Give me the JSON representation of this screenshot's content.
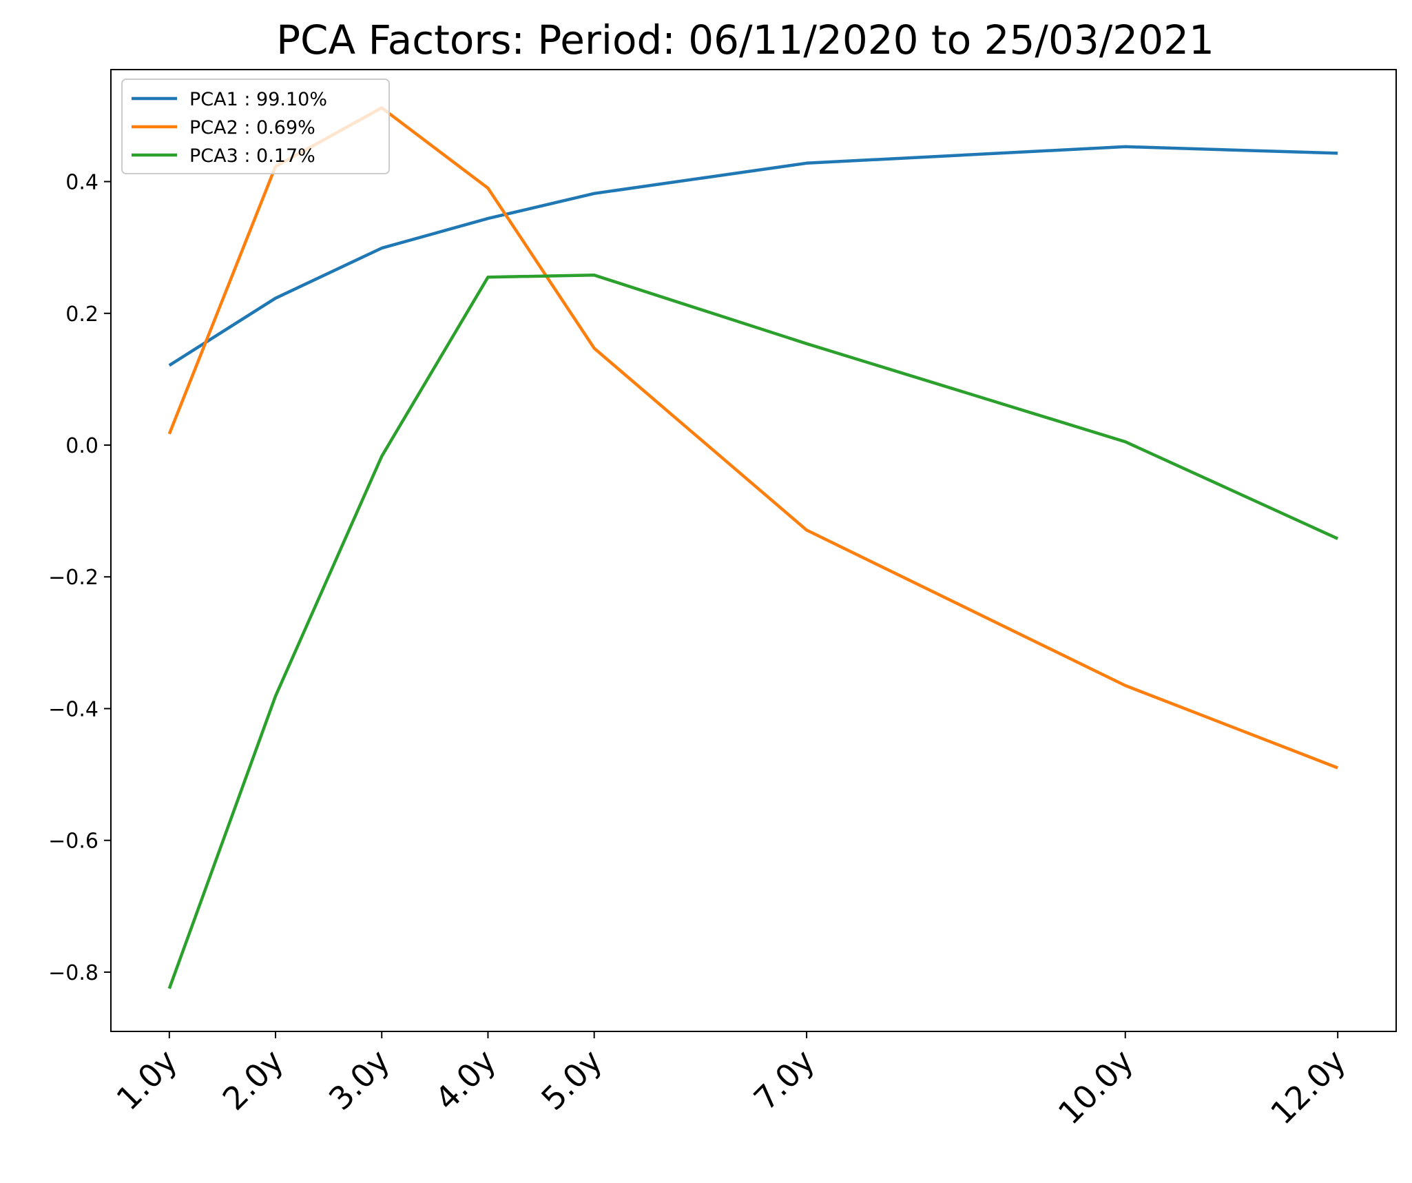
{
  "chart_data": {
    "type": "line",
    "title": "PCA Factors: Period: 06/11/2020 to 25/03/2021",
    "xlabel": "",
    "ylabel": "",
    "x": [
      1,
      2,
      3,
      4,
      5,
      7,
      10,
      12
    ],
    "x_tick_labels": [
      "1.0y",
      "2.0y",
      "3.0y",
      "4.0y",
      "5.0y",
      "7.0y",
      "10.0y",
      "12.0y"
    ],
    "xlim": [
      0.45,
      12.55
    ],
    "ylim": [
      -0.89,
      0.57
    ],
    "yticks": [
      -0.8,
      -0.6,
      -0.4,
      -0.2,
      0.0,
      0.2,
      0.4
    ],
    "ytick_labels": [
      "−0.8",
      "−0.6",
      "−0.4",
      "−0.2",
      "0.0",
      "0.2",
      "0.4"
    ],
    "grid": false,
    "legend_position": "top-left",
    "series": [
      {
        "name": "PCA1 : 99.10%",
        "color": "#1f77b4",
        "values": [
          0.121,
          0.223,
          0.299,
          0.344,
          0.382,
          0.428,
          0.453,
          0.443
        ]
      },
      {
        "name": "PCA2 : 0.69%",
        "color": "#ff7f0e",
        "values": [
          0.017,
          0.423,
          0.512,
          0.39,
          0.147,
          -0.129,
          -0.365,
          -0.49
        ]
      },
      {
        "name": "PCA3 : 0.17%",
        "color": "#2ca02c",
        "values": [
          -0.825,
          -0.381,
          -0.017,
          0.255,
          0.258,
          0.154,
          0.005,
          -0.142
        ]
      }
    ]
  }
}
